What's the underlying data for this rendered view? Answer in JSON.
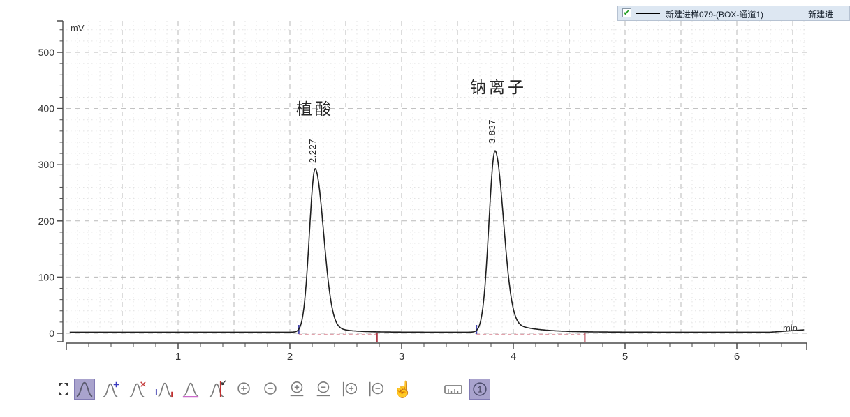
{
  "legend": {
    "checkbox_checked": true,
    "check_glyph": "✔",
    "series1": "新建进样079-(BOX-通道1)",
    "series2_truncated": "新建进",
    "line_color": "#000000"
  },
  "axes": {
    "y_unit": "mV",
    "x_unit": "min"
  },
  "toolbar": {
    "channel_label": "1",
    "buttons": [
      {
        "name": "fit-screen",
        "selected": false
      },
      {
        "name": "integration-tool",
        "selected": true
      },
      {
        "name": "add-peak",
        "selected": false
      },
      {
        "name": "delete-peak",
        "selected": false
      },
      {
        "name": "set-peak-start-end",
        "selected": false
      },
      {
        "name": "set-baseline",
        "selected": false
      },
      {
        "name": "split-peak",
        "selected": false
      },
      {
        "name": "zoom-in",
        "selected": false
      },
      {
        "name": "zoom-out",
        "selected": false
      },
      {
        "name": "zoom-in-x",
        "selected": false
      },
      {
        "name": "zoom-out-x",
        "selected": false
      },
      {
        "name": "zoom-in-y",
        "selected": false
      },
      {
        "name": "zoom-out-y",
        "selected": false
      },
      {
        "name": "pan",
        "selected": false
      },
      {
        "name": "ruler",
        "selected": false
      },
      {
        "name": "channel-1",
        "selected": true
      }
    ]
  },
  "chart_data": {
    "type": "line",
    "title": "",
    "xlabel": "min",
    "ylabel": "mV",
    "xlim": [
      0,
      6.63
    ],
    "ylim": [
      0,
      556
    ],
    "x_ticks": [
      1,
      2,
      3,
      4,
      5,
      6
    ],
    "y_ticks": [
      0,
      100,
      200,
      300,
      400,
      500
    ],
    "grid": "dashed major with dotted minor",
    "legend_position": "top-right",
    "series": [
      {
        "name": "新建进样079-(BOX-通道1)",
        "color": "#1f1f1f",
        "baseline_mV": 2,
        "end_rise": {
          "from_min": 6.3,
          "slope_mV_per_min": 14
        },
        "peaks": [
          {
            "name": "植酸",
            "rt_label": "2.227",
            "retention_time_min": 2.227,
            "height_mV": 291,
            "base_start_min": 2.08,
            "base_end_min": 2.78,
            "sigma_left_min": 0.052,
            "sigma_right_min": 0.075,
            "tail_fraction": 0.07,
            "tail_tau_min": 0.16
          },
          {
            "name": "钠离子",
            "rt_label": "3.837",
            "retention_time_min": 3.837,
            "height_mV": 323,
            "base_start_min": 3.67,
            "base_end_min": 4.64,
            "sigma_left_min": 0.055,
            "sigma_right_min": 0.075,
            "tail_fraction": 0.09,
            "tail_tau_min": 0.22
          }
        ]
      }
    ]
  }
}
